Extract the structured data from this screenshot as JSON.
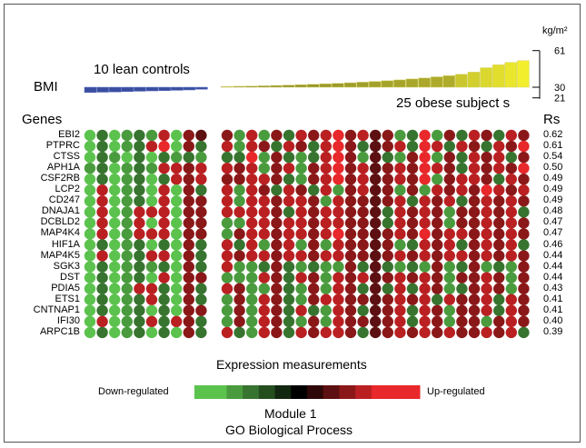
{
  "unit_label": "kg/m²",
  "bmi_label": "BMI",
  "lean_label": "10 lean controls",
  "obese_label": "25 obese subject  s",
  "genes_header": "Genes",
  "rs_header": "Rs",
  "expression_title": "Expression measurements",
  "legend": {
    "down": "Down-regulated",
    "up": "Up-regulated"
  },
  "module_title": "Module 1",
  "module_subtitle": "GO Biological Process",
  "colors": {
    "lean_bar": "#3a4ea0",
    "obese_bar_low": "#8c8b2a",
    "obese_bar_high": "#f2ee2e",
    "down_color": "#5cc24e",
    "mid_color": "#000000",
    "up_color": "#e8282a"
  },
  "chart_data": {
    "type": "heatmap",
    "bmi": {
      "axis_ticks": [
        61,
        30,
        21
      ],
      "ylim": [
        21,
        61
      ],
      "baseline": 30,
      "lean_values": [
        25.5,
        25.8,
        26.0,
        26.3,
        26.6,
        26.9,
        27.1,
        27.4,
        27.7,
        28.3
      ],
      "obese_values": [
        30.6,
        30.8,
        31.0,
        31.2,
        31.5,
        31.8,
        32.1,
        32.5,
        32.9,
        33.3,
        33.8,
        34.3,
        34.9,
        35.5,
        36.2,
        37.0,
        37.8,
        38.8,
        39.8,
        41.0,
        42.8,
        46.5,
        49.0,
        51.0,
        52.5
      ]
    },
    "genes": [
      "EBI2",
      "PTPRC",
      "CTSS",
      "APH1A",
      "CSF2RB",
      "LCP2",
      "CD247",
      "DNAJA1",
      "DCBLD2",
      "MAP4K4",
      "HIF1A",
      "MAP4K5",
      "SGK3",
      "DST",
      "PDIA5",
      "ETS1",
      "CNTNAP1",
      "IFI30",
      "ARPC1B"
    ],
    "rs": [
      "0.62",
      "0.61",
      "0.54",
      "0.50",
      "0.49",
      "0.49",
      "0.49",
      "0.48",
      "0.47",
      "0.47",
      "0.46",
      "0.44",
      "0.44",
      "0.44",
      "0.43",
      "0.41",
      "0.41",
      "0.40",
      "0.39"
    ],
    "color_scale": [
      -6,
      -5,
      -4,
      -3,
      -2,
      -1,
      0,
      1,
      2,
      3,
      4,
      5,
      6,
      7
    ],
    "matrix": [
      [
        -5,
        -3,
        -5,
        -4,
        -3,
        -4,
        4,
        -5,
        3,
        2,
        3,
        -4,
        4,
        -4,
        3,
        -3,
        4,
        3,
        4,
        5,
        3,
        4,
        2,
        3,
        -4,
        -3,
        5,
        -4,
        3,
        -3,
        4,
        3,
        -3,
        4,
        3
      ],
      [
        -5,
        -3,
        -5,
        -4,
        -3,
        4,
        5,
        -5,
        3,
        -3,
        4,
        -4,
        4,
        3,
        -3,
        4,
        3,
        -3,
        4,
        5,
        3,
        -3,
        2,
        3,
        4,
        -3,
        5,
        4,
        -3,
        4,
        3,
        -3,
        4,
        3,
        5
      ],
      [
        -5,
        -3,
        -4,
        -5,
        -3,
        -5,
        -3,
        -4,
        -3,
        -4,
        -3,
        -3,
        5,
        -4,
        3,
        -3,
        -4,
        -3,
        4,
        5,
        3,
        -4,
        2,
        -3,
        -4,
        3,
        5,
        -4,
        3,
        -3,
        4,
        3,
        4,
        -3,
        3
      ],
      [
        -4,
        -3,
        -5,
        -4,
        -3,
        -4,
        4,
        4,
        3,
        4,
        4,
        3,
        4,
        -4,
        3,
        4,
        -4,
        3,
        4,
        5,
        3,
        4,
        2,
        3,
        4,
        3,
        5,
        4,
        3,
        -3,
        4,
        3,
        4,
        3,
        5
      ],
      [
        -5,
        -3,
        -5,
        -4,
        -3,
        -5,
        -3,
        4,
        3,
        4,
        3,
        3,
        4,
        4,
        3,
        -3,
        -4,
        3,
        4,
        5,
        3,
        4,
        2,
        3,
        4,
        3,
        5,
        -4,
        3,
        4,
        4,
        3,
        -3,
        4,
        3
      ],
      [
        -5,
        4,
        -5,
        -4,
        -3,
        -5,
        4,
        -5,
        3,
        -3,
        4,
        -4,
        4,
        3,
        -3,
        4,
        3,
        -3,
        4,
        -4,
        3,
        4,
        2,
        3,
        -4,
        3,
        -4,
        4,
        3,
        4,
        3,
        5,
        4,
        3,
        4
      ],
      [
        -5,
        4,
        -5,
        -4,
        -3,
        -5,
        4,
        -5,
        3,
        3,
        4,
        -4,
        4,
        4,
        3,
        4,
        4,
        3,
        -4,
        4,
        3,
        3,
        2,
        3,
        4,
        -3,
        4,
        3,
        4,
        -3,
        3,
        4,
        3,
        4,
        3
      ],
      [
        -5,
        4,
        -5,
        -4,
        4,
        4,
        4,
        -5,
        3,
        3,
        4,
        4,
        4,
        4,
        3,
        -3,
        4,
        3,
        4,
        4,
        3,
        3,
        2,
        -3,
        4,
        3,
        4,
        3,
        -4,
        3,
        3,
        4,
        3,
        4,
        -3
      ],
      [
        -5,
        4,
        -5,
        -4,
        4,
        -5,
        4,
        -5,
        3,
        3,
        -4,
        -4,
        4,
        4,
        3,
        4,
        4,
        3,
        4,
        4,
        3,
        3,
        2,
        -3,
        4,
        3,
        4,
        3,
        -4,
        3,
        3,
        4,
        3,
        4,
        3
      ],
      [
        -5,
        4,
        -5,
        -4,
        4,
        4,
        4,
        -5,
        3,
        3,
        -4,
        3,
        4,
        4,
        3,
        4,
        4,
        3,
        4,
        5,
        3,
        3,
        2,
        3,
        4,
        3,
        5,
        3,
        4,
        4,
        3,
        4,
        3,
        4,
        3
      ],
      [
        -5,
        -3,
        -5,
        -4,
        -3,
        -5,
        -3,
        -5,
        3,
        -3,
        4,
        -3,
        4,
        -4,
        3,
        4,
        -4,
        3,
        -4,
        4,
        3,
        3,
        2,
        3,
        -4,
        -3,
        4,
        3,
        4,
        -3,
        3,
        4,
        3,
        4,
        -3
      ],
      [
        -5,
        4,
        -5,
        -4,
        -3,
        4,
        4,
        -5,
        3,
        -3,
        4,
        3,
        4,
        4,
        3,
        4,
        4,
        3,
        4,
        4,
        3,
        3,
        2,
        3,
        4,
        3,
        4,
        3,
        4,
        4,
        3,
        4,
        3,
        4,
        3
      ],
      [
        -5,
        -3,
        -5,
        -4,
        -3,
        -4,
        -3,
        -5,
        3,
        -3,
        4,
        -4,
        -4,
        -3,
        3,
        -3,
        -4,
        -3,
        -4,
        -4,
        3,
        -3,
        2,
        -3,
        -4,
        -3,
        -4,
        3,
        -4,
        -3,
        3,
        -4,
        -3,
        -4,
        3
      ],
      [
        -5,
        -3,
        -5,
        -4,
        -3,
        -5,
        4,
        -5,
        3,
        3,
        -4,
        -4,
        -4,
        4,
        3,
        -3,
        4,
        3,
        -4,
        4,
        3,
        4,
        2,
        3,
        4,
        3,
        4,
        3,
        -4,
        3,
        3,
        4,
        3,
        -4,
        3
      ],
      [
        -5,
        -3,
        -5,
        -4,
        4,
        4,
        -3,
        -5,
        3,
        -3,
        4,
        3,
        -4,
        -4,
        3,
        -3,
        -4,
        3,
        -4,
        4,
        3,
        -3,
        2,
        -3,
        4,
        -3,
        4,
        3,
        -4,
        -3,
        3,
        4,
        3,
        -4,
        3
      ],
      [
        -5,
        -3,
        -5,
        -4,
        -3,
        4,
        -3,
        -5,
        3,
        -3,
        -4,
        3,
        -4,
        4,
        3,
        -3,
        -4,
        3,
        4,
        4,
        3,
        3,
        2,
        3,
        4,
        3,
        4,
        -3,
        4,
        3,
        3,
        4,
        -3,
        4,
        3
      ],
      [
        -5,
        -3,
        -5,
        -4,
        -3,
        -5,
        -3,
        -5,
        3,
        3,
        -4,
        3,
        -4,
        4,
        3,
        -3,
        4,
        -3,
        -4,
        4,
        3,
        -3,
        2,
        3,
        4,
        -3,
        4,
        3,
        -4,
        3,
        3,
        4,
        -3,
        4,
        3
      ],
      [
        -5,
        4,
        -5,
        -4,
        -3,
        4,
        -3,
        4,
        3,
        -3,
        -4,
        3,
        -4,
        4,
        3,
        -3,
        -4,
        3,
        -4,
        4,
        3,
        3,
        2,
        3,
        4,
        -3,
        4,
        3,
        -4,
        3,
        3,
        -4,
        3,
        4,
        3
      ],
      [
        -5,
        -3,
        -5,
        -4,
        -3,
        -5,
        -3,
        -5,
        3,
        -3,
        4,
        -3,
        -4,
        4,
        3,
        -3,
        4,
        3,
        4,
        4,
        3,
        -3,
        2,
        3,
        4,
        3,
        4,
        3,
        4,
        3,
        3,
        4,
        3,
        4,
        -3
      ]
    ]
  }
}
